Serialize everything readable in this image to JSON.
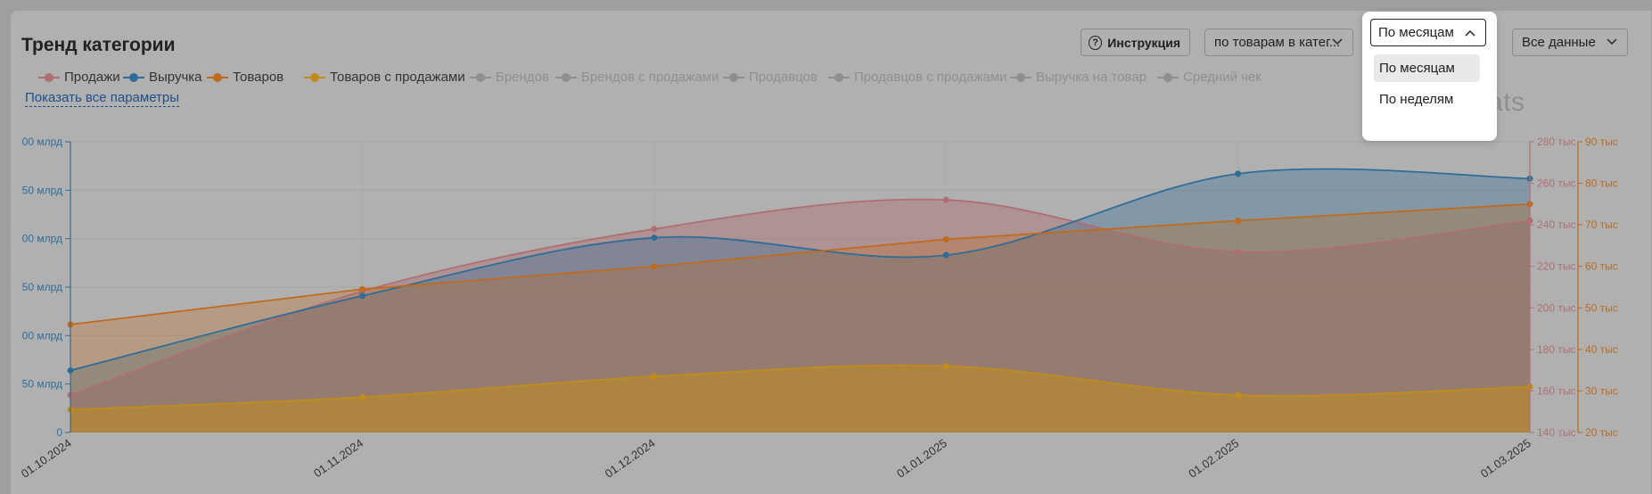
{
  "header": {
    "title": "Тренд категории",
    "help_label": "Инструкция",
    "help_icon": "question-circle-icon",
    "scope_value": "по товарам в катег...",
    "period_value": "По месяцам",
    "range_value": "Все данные"
  },
  "period_dropdown": {
    "options": [
      "По месяцам",
      "По неделям"
    ],
    "selected": "По месяцам"
  },
  "legend": [
    {
      "label": "Продажи",
      "color": "#b06e73",
      "active": true
    },
    {
      "label": "Выручка",
      "color": "#2f6d99",
      "active": true
    },
    {
      "label": "Товаров",
      "color": "#c06a1c",
      "active": true
    },
    {
      "label": "Товаров с продажами",
      "color": "#c18c1c",
      "active": true
    },
    {
      "label": "Брендов",
      "color": "#8f8f8f",
      "active": false
    },
    {
      "label": "Брендов с продажами",
      "color": "#8f8f8f",
      "active": false
    },
    {
      "label": "Продавцов",
      "color": "#8f8f8f",
      "active": false
    },
    {
      "label": "Продавцов с продажами",
      "color": "#8f8f8f",
      "active": false
    },
    {
      "label": "Выручка на товар",
      "color": "#8f8f8f",
      "active": false
    },
    {
      "label": "Средний чек",
      "color": "#8f8f8f",
      "active": false
    }
  ],
  "show_all_label": "Показать все параметры",
  "logo_text": "mpstats",
  "chart_data": {
    "type": "area",
    "categories": [
      "01.10.2024",
      "01.11.2024",
      "01.12.2024",
      "01.01.2025",
      "01.02.2025",
      "01.03.2025"
    ],
    "left_axis": {
      "color": "#2f6d99",
      "ticks": [
        "0",
        "50 млрд",
        "00 млрд",
        "50 млрд",
        "00 млрд",
        "50 млрд",
        "00 млрд"
      ],
      "min": 0,
      "max": 300
    },
    "right_axis_sales": {
      "color": "#b06e73",
      "ticks": [
        "140 тыс",
        "160 тыс",
        "180 тыс",
        "200 тыс",
        "220 тыс",
        "240 тыс",
        "260 тыс",
        "280 тыс"
      ],
      "min": 140,
      "max": 280
    },
    "right_axis_items": {
      "color": "#c06a1c",
      "ticks": [
        "20 тыс",
        "30 тыс",
        "40 тыс",
        "50 тыс",
        "60 тыс",
        "70 тыс",
        "80 тыс",
        "90 тыс"
      ],
      "min": 20,
      "max": 90
    },
    "series": [
      {
        "name": "Продажи",
        "axis": "right_axis_sales",
        "color": "#b06e73",
        "values": [
          158,
          208,
          238,
          252,
          227,
          242
        ]
      },
      {
        "name": "Выручка",
        "axis": "left_axis",
        "color": "#2f6d99",
        "values": [
          64,
          141,
          201,
          183,
          267,
          262
        ]
      },
      {
        "name": "Товаров",
        "axis": "right_axis_items",
        "color": "#c06a1c",
        "values": [
          46,
          54.5,
          60,
          66.5,
          71,
          75
        ]
      },
      {
        "name": "Товаров с продажами",
        "axis": "right_axis_items",
        "color": "#c18c1c",
        "values": [
          25.5,
          28.5,
          33.5,
          36,
          29,
          31
        ]
      }
    ],
    "grid": true,
    "legend_position": "top-left"
  }
}
